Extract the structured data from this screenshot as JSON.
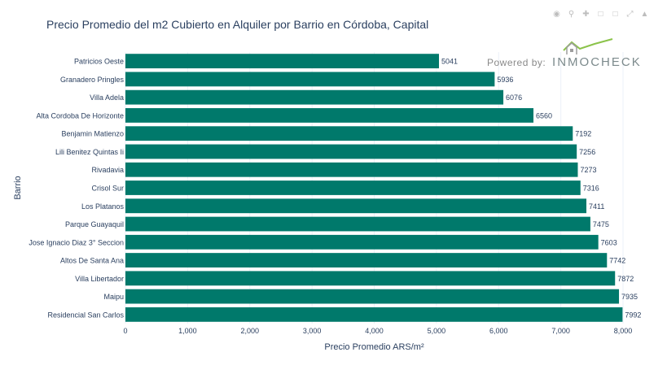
{
  "modebar": {
    "icons": [
      "camera-icon",
      "zoom-icon",
      "pan-icon",
      "zoom-in-icon",
      "zoom-out-icon",
      "autoscale-icon",
      "home-icon"
    ]
  },
  "watermark": {
    "powered_by": "Powered by:",
    "brand_name": "INMOCHECK"
  },
  "chart_data": {
    "type": "bar",
    "orientation": "horizontal",
    "title": "Precio Promedio del m2 Cubierto en Alquiler por Barrio en Córdoba, Capital",
    "xlabel": "Precio Promedio ARS/m²",
    "ylabel": "Barrio",
    "xlim": [
      0,
      8000
    ],
    "xticks": [
      0,
      1000,
      2000,
      3000,
      4000,
      5000,
      6000,
      7000,
      8000
    ],
    "xtick_labels": [
      "0",
      "1,000",
      "2,000",
      "3,000",
      "4,000",
      "5,000",
      "6,000",
      "7,000",
      "8,000"
    ],
    "bar_color": "#00796b",
    "grid": true,
    "categories": [
      "Patricios Oeste",
      "Granadero Pringles",
      "Villa Adela",
      "Alta Cordoba De Horizonte",
      "Benjamin Matienzo",
      "Lili Benitez Quintas Ii",
      "Rivadavia",
      "Crisol Sur",
      "Los Platanos",
      "Parque Guayaquil",
      "Jose Ignacio Diaz 3° Seccion",
      "Altos De Santa Ana",
      "Villa Libertador",
      "Maipu",
      "Residencial San Carlos"
    ],
    "values": [
      5041,
      5936,
      6076,
      6560,
      7192,
      7256,
      7273,
      7316,
      7411,
      7475,
      7603,
      7742,
      7872,
      7935,
      7992
    ]
  }
}
